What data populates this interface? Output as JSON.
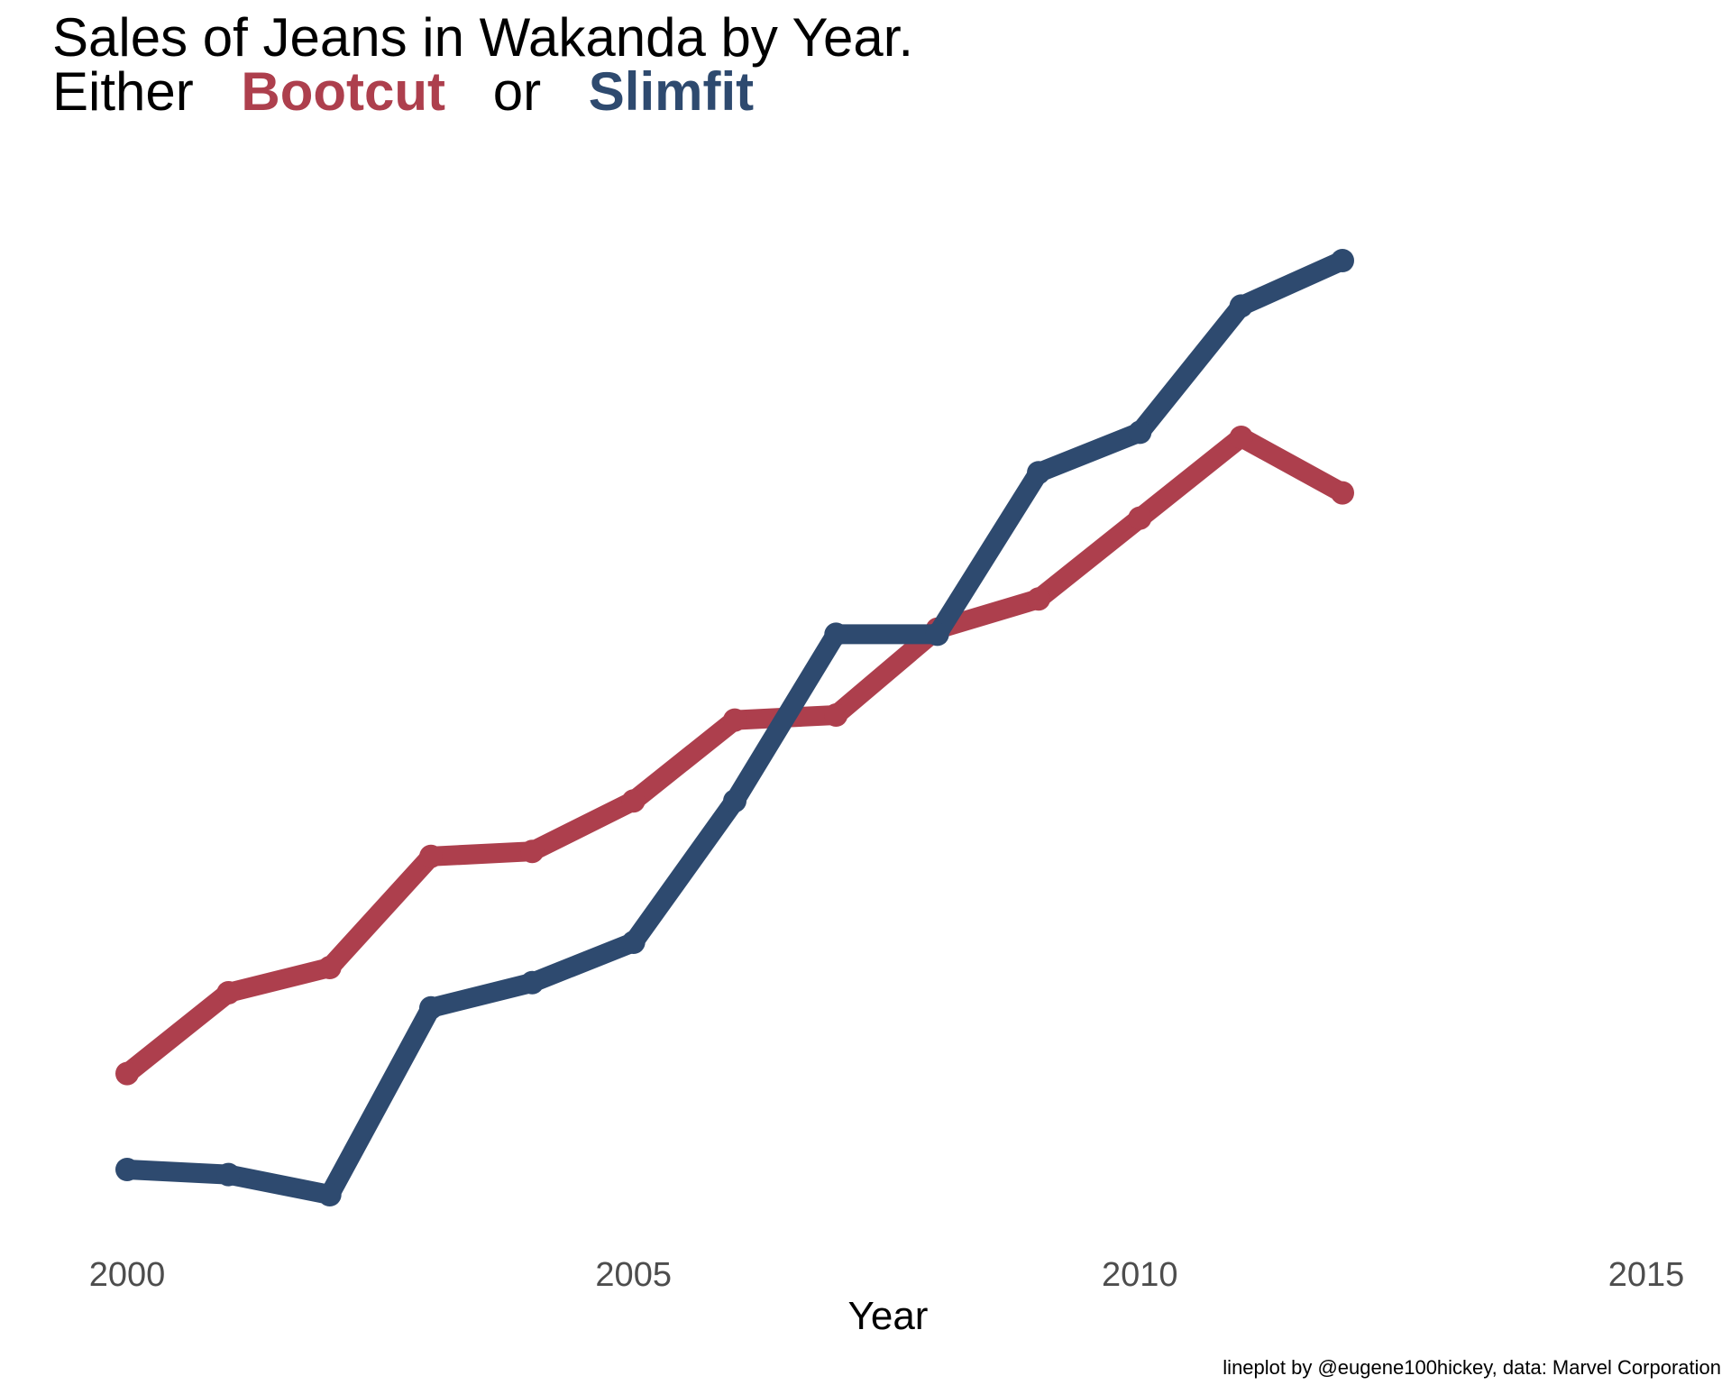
{
  "chart_data": {
    "type": "line",
    "title": "Sales of Jeans in Wakanda by Year.",
    "subtitle": {
      "prefix": "Either",
      "series_a": "Bootcut",
      "joiner": "or",
      "series_b": "Slimfit"
    },
    "xlabel": "Year",
    "ylabel": "",
    "caption": "lineplot by @eugene100hickey, data: Marvel Corporation",
    "x_ticks": [
      "2000",
      "2005",
      "2010",
      "2015"
    ],
    "x_tick_values": [
      2000,
      2005,
      2010,
      2015
    ],
    "xlim": [
      2000,
      2015
    ],
    "ylim": [
      0,
      100
    ],
    "y_axis_shown": false,
    "grid": false,
    "legend": "none",
    "x": [
      2000,
      2001,
      2002,
      2003,
      2004,
      2005,
      2006,
      2007,
      2008,
      2009,
      2010,
      2011,
      2012
    ],
    "series": [
      {
        "name": "Bootcut",
        "color": "#AD3F4D",
        "values": [
          12,
          20,
          22.5,
          33.5,
          34,
          39,
          47,
          47.5,
          56,
          59,
          67,
          75,
          69.5
        ]
      },
      {
        "name": "Slimfit",
        "color": "#2E4A6F",
        "values": [
          2.5,
          2,
          0,
          18.5,
          21,
          25,
          39,
          55.5,
          55.5,
          71.5,
          75.5,
          88,
          92.5
        ]
      }
    ]
  }
}
